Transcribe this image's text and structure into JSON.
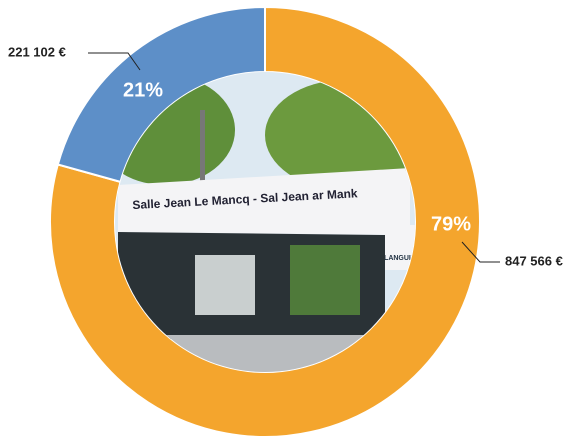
{
  "chart_data": {
    "type": "donut",
    "categories": [
      "847 566 €",
      "221 102 €"
    ],
    "values": [
      847566,
      221102
    ],
    "value_labels": [
      "847 566 €",
      "221 102 €"
    ],
    "percent_values": [
      79,
      21
    ],
    "percent_labels": [
      "79%",
      "21%"
    ],
    "colors": [
      "#f4a52d",
      "#5d8fc8"
    ],
    "image_text": [
      "Salle Jean Le Mancq - Sal Jean ar Mank",
      "LANGUID"
    ]
  }
}
